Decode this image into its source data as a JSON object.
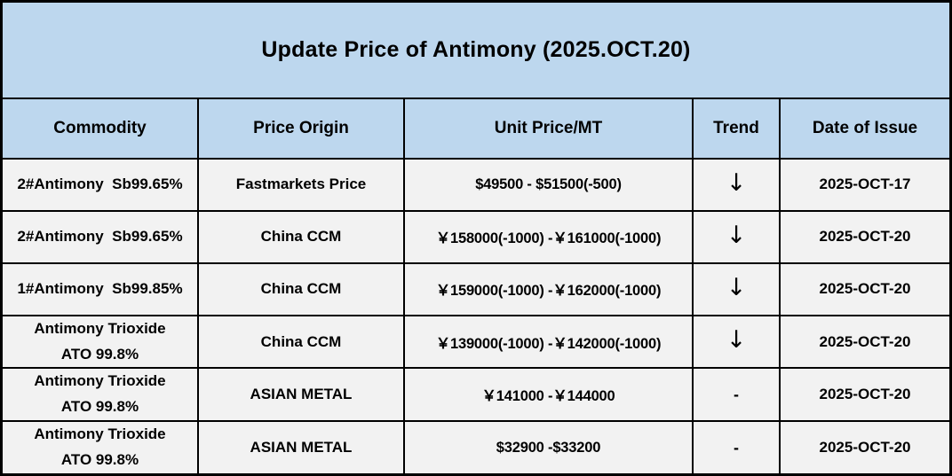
{
  "title": "Update Price of Antimony (2025.OCT.20)",
  "colors": {
    "banner_bg": "#BDD7EE",
    "row_bg": "#F2F2F2",
    "grid": "#000000",
    "text": "#000000"
  },
  "table": {
    "columns": {
      "commodity": "Commodity",
      "origin": "Price Origin",
      "price": "Unit Price/MT",
      "trend": "Trend",
      "date": "Date of Issue"
    },
    "rows": [
      {
        "commodity": "2#Antimony  Sb99.65%",
        "origin": "Fastmarkets Price",
        "price": "$49500 - $51500(-500)",
        "trend": "↓",
        "date": "2025-OCT-17"
      },
      {
        "commodity": "2#Antimony  Sb99.65%",
        "origin": "China CCM",
        "price": "￥158000(-1000) -￥161000(-1000)",
        "trend": "↓",
        "date": "2025-OCT-20"
      },
      {
        "commodity": "1#Antimony  Sb99.85%",
        "origin": "China CCM",
        "price": "￥159000(-1000) -￥162000(-1000)",
        "trend": "↓",
        "date": "2025-OCT-20"
      },
      {
        "commodity": "Antimony Trioxide\nATO 99.8%",
        "origin": "China CCM",
        "price": "￥139000(-1000) -￥142000(-1000)",
        "trend": "↓",
        "date": "2025-OCT-20"
      },
      {
        "commodity": "Antimony Trioxide\nATO 99.8%",
        "origin": "ASIAN METAL",
        "price": "￥141000 -￥144000",
        "trend": "-",
        "date": "2025-OCT-20"
      },
      {
        "commodity": "Antimony Trioxide\nATO 99.8%",
        "origin": "ASIAN METAL",
        "price": "$32900 -$33200",
        "trend": "-",
        "date": "2025-OCT-20"
      }
    ]
  }
}
